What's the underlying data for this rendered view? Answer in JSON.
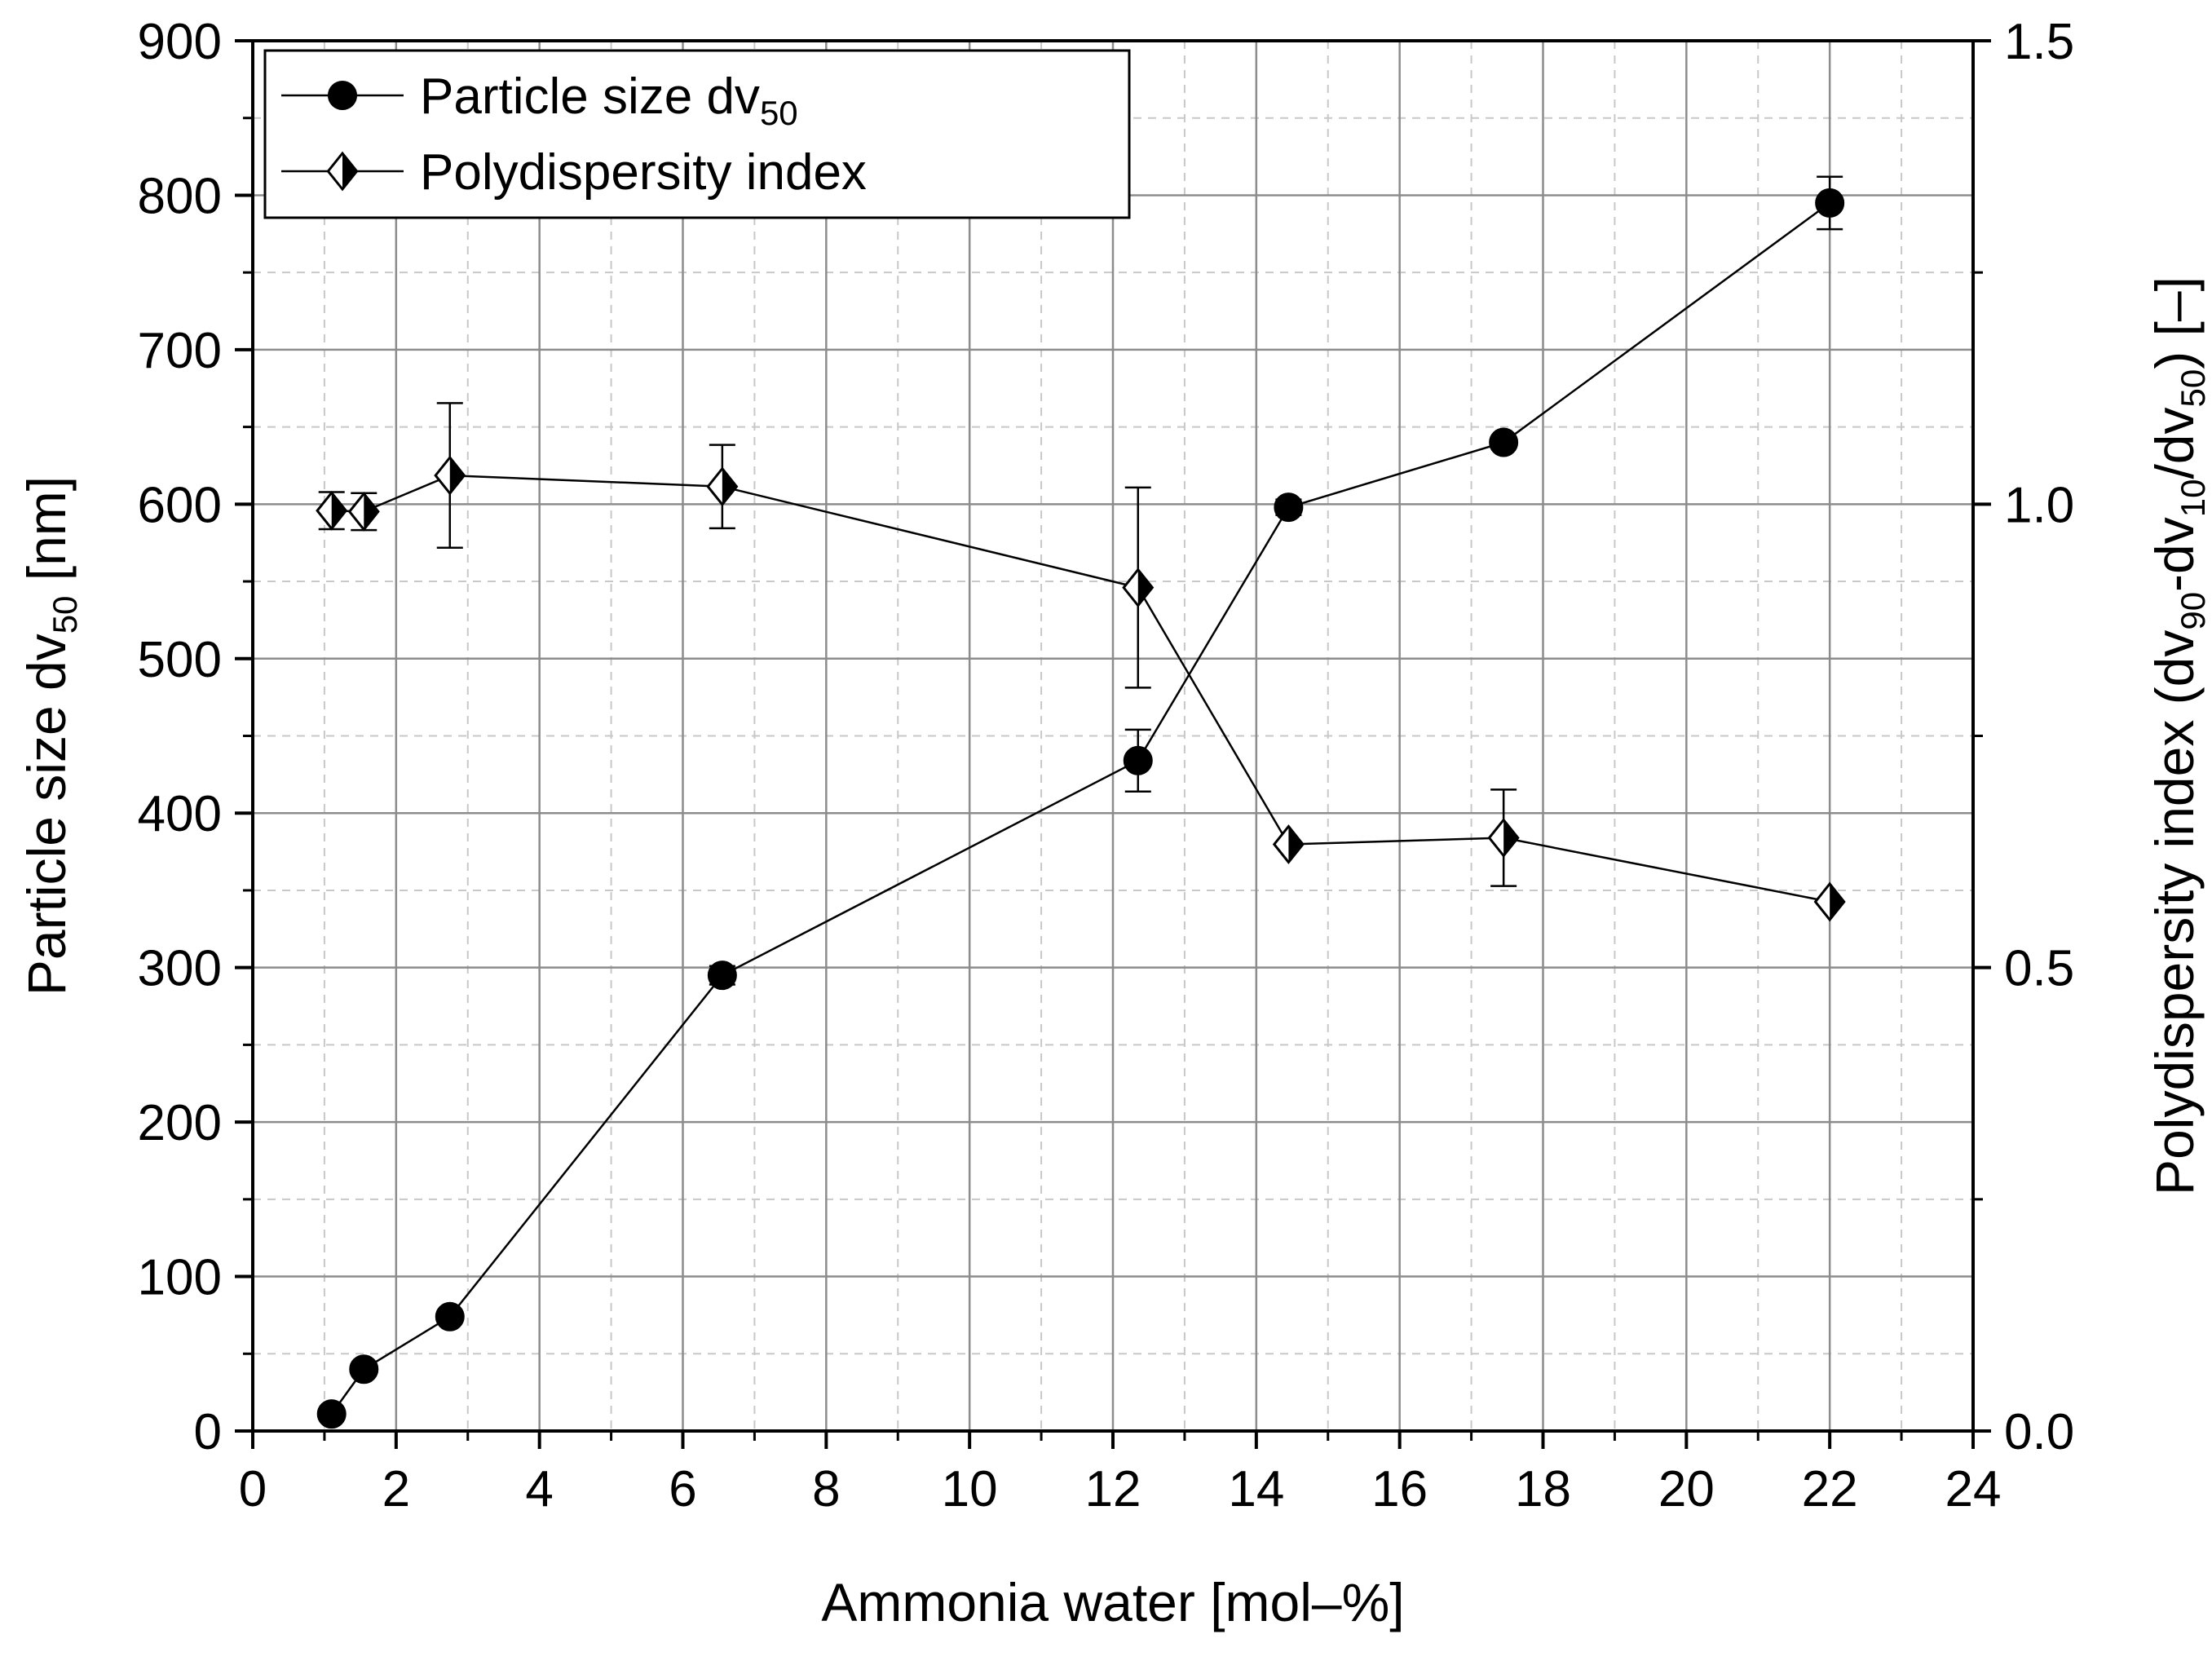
{
  "chart_data": {
    "type": "line",
    "title": "",
    "xlabel": "Ammonia water [mol–%]",
    "ylabel": {
      "main": "Particle size dv",
      "sub": "50",
      "tail": " [nm]"
    },
    "y2label": {
      "parts": [
        {
          "text": "Polydispersity index (dv",
          "sub": false
        },
        {
          "text": "90",
          "sub": true
        },
        {
          "text": "-dv",
          "sub": false
        },
        {
          "text": "10",
          "sub": true
        },
        {
          "text": "/dv",
          "sub": false
        },
        {
          "text": "50",
          "sub": true
        },
        {
          "text": ") [–]",
          "sub": false
        }
      ]
    },
    "xlim": [
      0,
      24
    ],
    "ylim": [
      0,
      900
    ],
    "y2lim": [
      0,
      1.5
    ],
    "xticks": [
      "0",
      "2",
      "4",
      "6",
      "8",
      "10",
      "12",
      "14",
      "16",
      "18",
      "20",
      "22",
      "24"
    ],
    "yticks": [
      "0",
      "100",
      "200",
      "300",
      "400",
      "500",
      "600",
      "700",
      "800",
      "900"
    ],
    "y2ticks": [
      "0.0",
      "0.5",
      "1.0",
      "1.5"
    ],
    "grid": true,
    "legend_position": "top-left",
    "series": [
      {
        "name": "Particle size dv",
        "name_sub": "50",
        "axis": "left",
        "marker": "circle",
        "x": [
          1.1,
          1.55,
          2.75,
          6.55,
          12.35,
          14.45,
          17.45,
          22.0
        ],
        "values": [
          11,
          40,
          74,
          295,
          434,
          598,
          640,
          795
        ],
        "error": [
          0,
          0,
          0,
          6,
          20,
          5,
          0,
          17
        ]
      },
      {
        "name": "Polydispersity index",
        "name_sub": "",
        "axis": "right",
        "marker": "half-filled-diamond",
        "x": [
          1.1,
          1.55,
          2.75,
          6.55,
          12.35,
          14.45,
          17.45,
          22.0
        ],
        "values": [
          0.993,
          0.992,
          1.031,
          1.019,
          0.91,
          0.633,
          0.64,
          0.571
        ],
        "error": [
          0.02,
          0.02,
          0.078,
          0.045,
          0.108,
          0,
          0.052,
          0
        ]
      }
    ]
  }
}
